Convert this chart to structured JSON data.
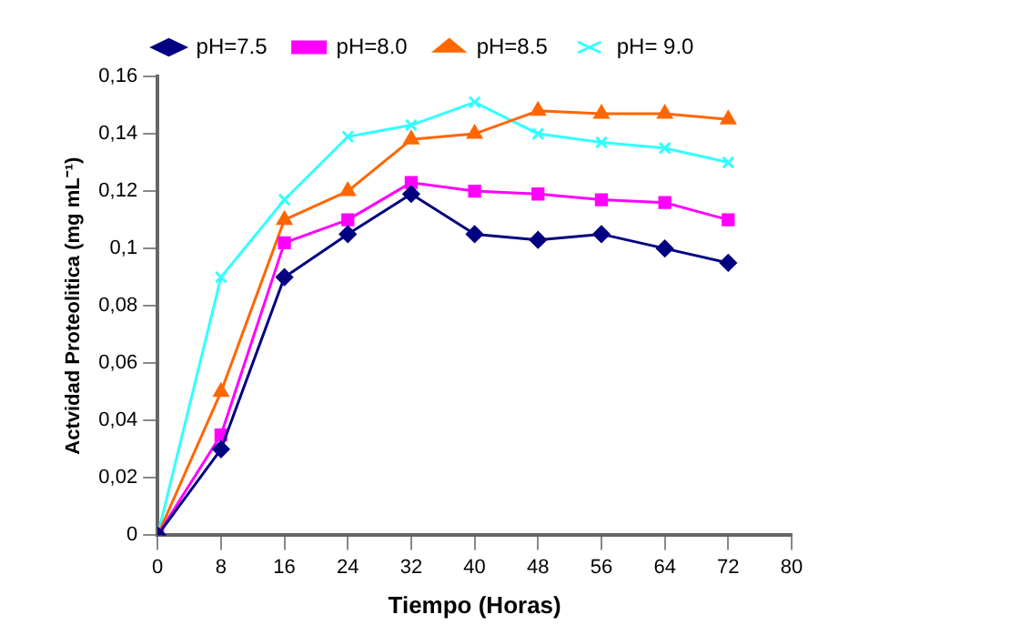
{
  "chart_data": {
    "type": "line",
    "xlabel": "Tiempo (Horas)",
    "ylabel": "Actvidad Proteolitica (mg mL⁻¹)",
    "x": [
      0,
      8,
      16,
      24,
      32,
      40,
      48,
      56,
      64,
      72
    ],
    "series": [
      {
        "name": "pH=7.5",
        "color": "#000080",
        "marker": "diamond",
        "values": [
          0,
          0.03,
          0.09,
          0.105,
          0.119,
          0.105,
          0.103,
          0.105,
          0.1,
          0.095
        ]
      },
      {
        "name": "pH=8.0",
        "color": "#ff00ff",
        "marker": "square",
        "values": [
          0,
          0.035,
          0.102,
          0.11,
          0.123,
          0.12,
          0.119,
          0.117,
          0.116,
          0.11
        ]
      },
      {
        "name": "pH=8.5",
        "color": "#ff6600",
        "marker": "triangle",
        "values": [
          0,
          0.05,
          0.11,
          0.12,
          0.138,
          0.14,
          0.148,
          0.147,
          0.147,
          0.145
        ]
      },
      {
        "name": "pH= 9.0",
        "color": "#33ffff",
        "marker": "cross",
        "values": [
          0,
          0.09,
          0.117,
          0.139,
          0.143,
          0.151,
          0.14,
          0.137,
          0.135,
          0.13
        ]
      }
    ],
    "xlim": [
      0,
      80
    ],
    "xticks": [
      0,
      8,
      16,
      24,
      32,
      40,
      48,
      56,
      64,
      72,
      80
    ],
    "ylim": [
      0,
      0.16
    ],
    "yticks": [
      0,
      {
        "value": 0.02,
        "label": "0,02"
      },
      {
        "value": 0.04,
        "label": "0,04"
      },
      {
        "value": 0.06,
        "label": "0,06"
      },
      {
        "value": 0.08,
        "label": "0,08"
      },
      {
        "value": 0.1,
        "label": "0,1"
      },
      {
        "value": 0.12,
        "label": "0,12"
      },
      {
        "value": 0.14,
        "label": "0,14"
      },
      {
        "value": 0.16,
        "label": "0,16"
      }
    ],
    "grid": false,
    "legend": "top",
    "line_style": "solid"
  }
}
